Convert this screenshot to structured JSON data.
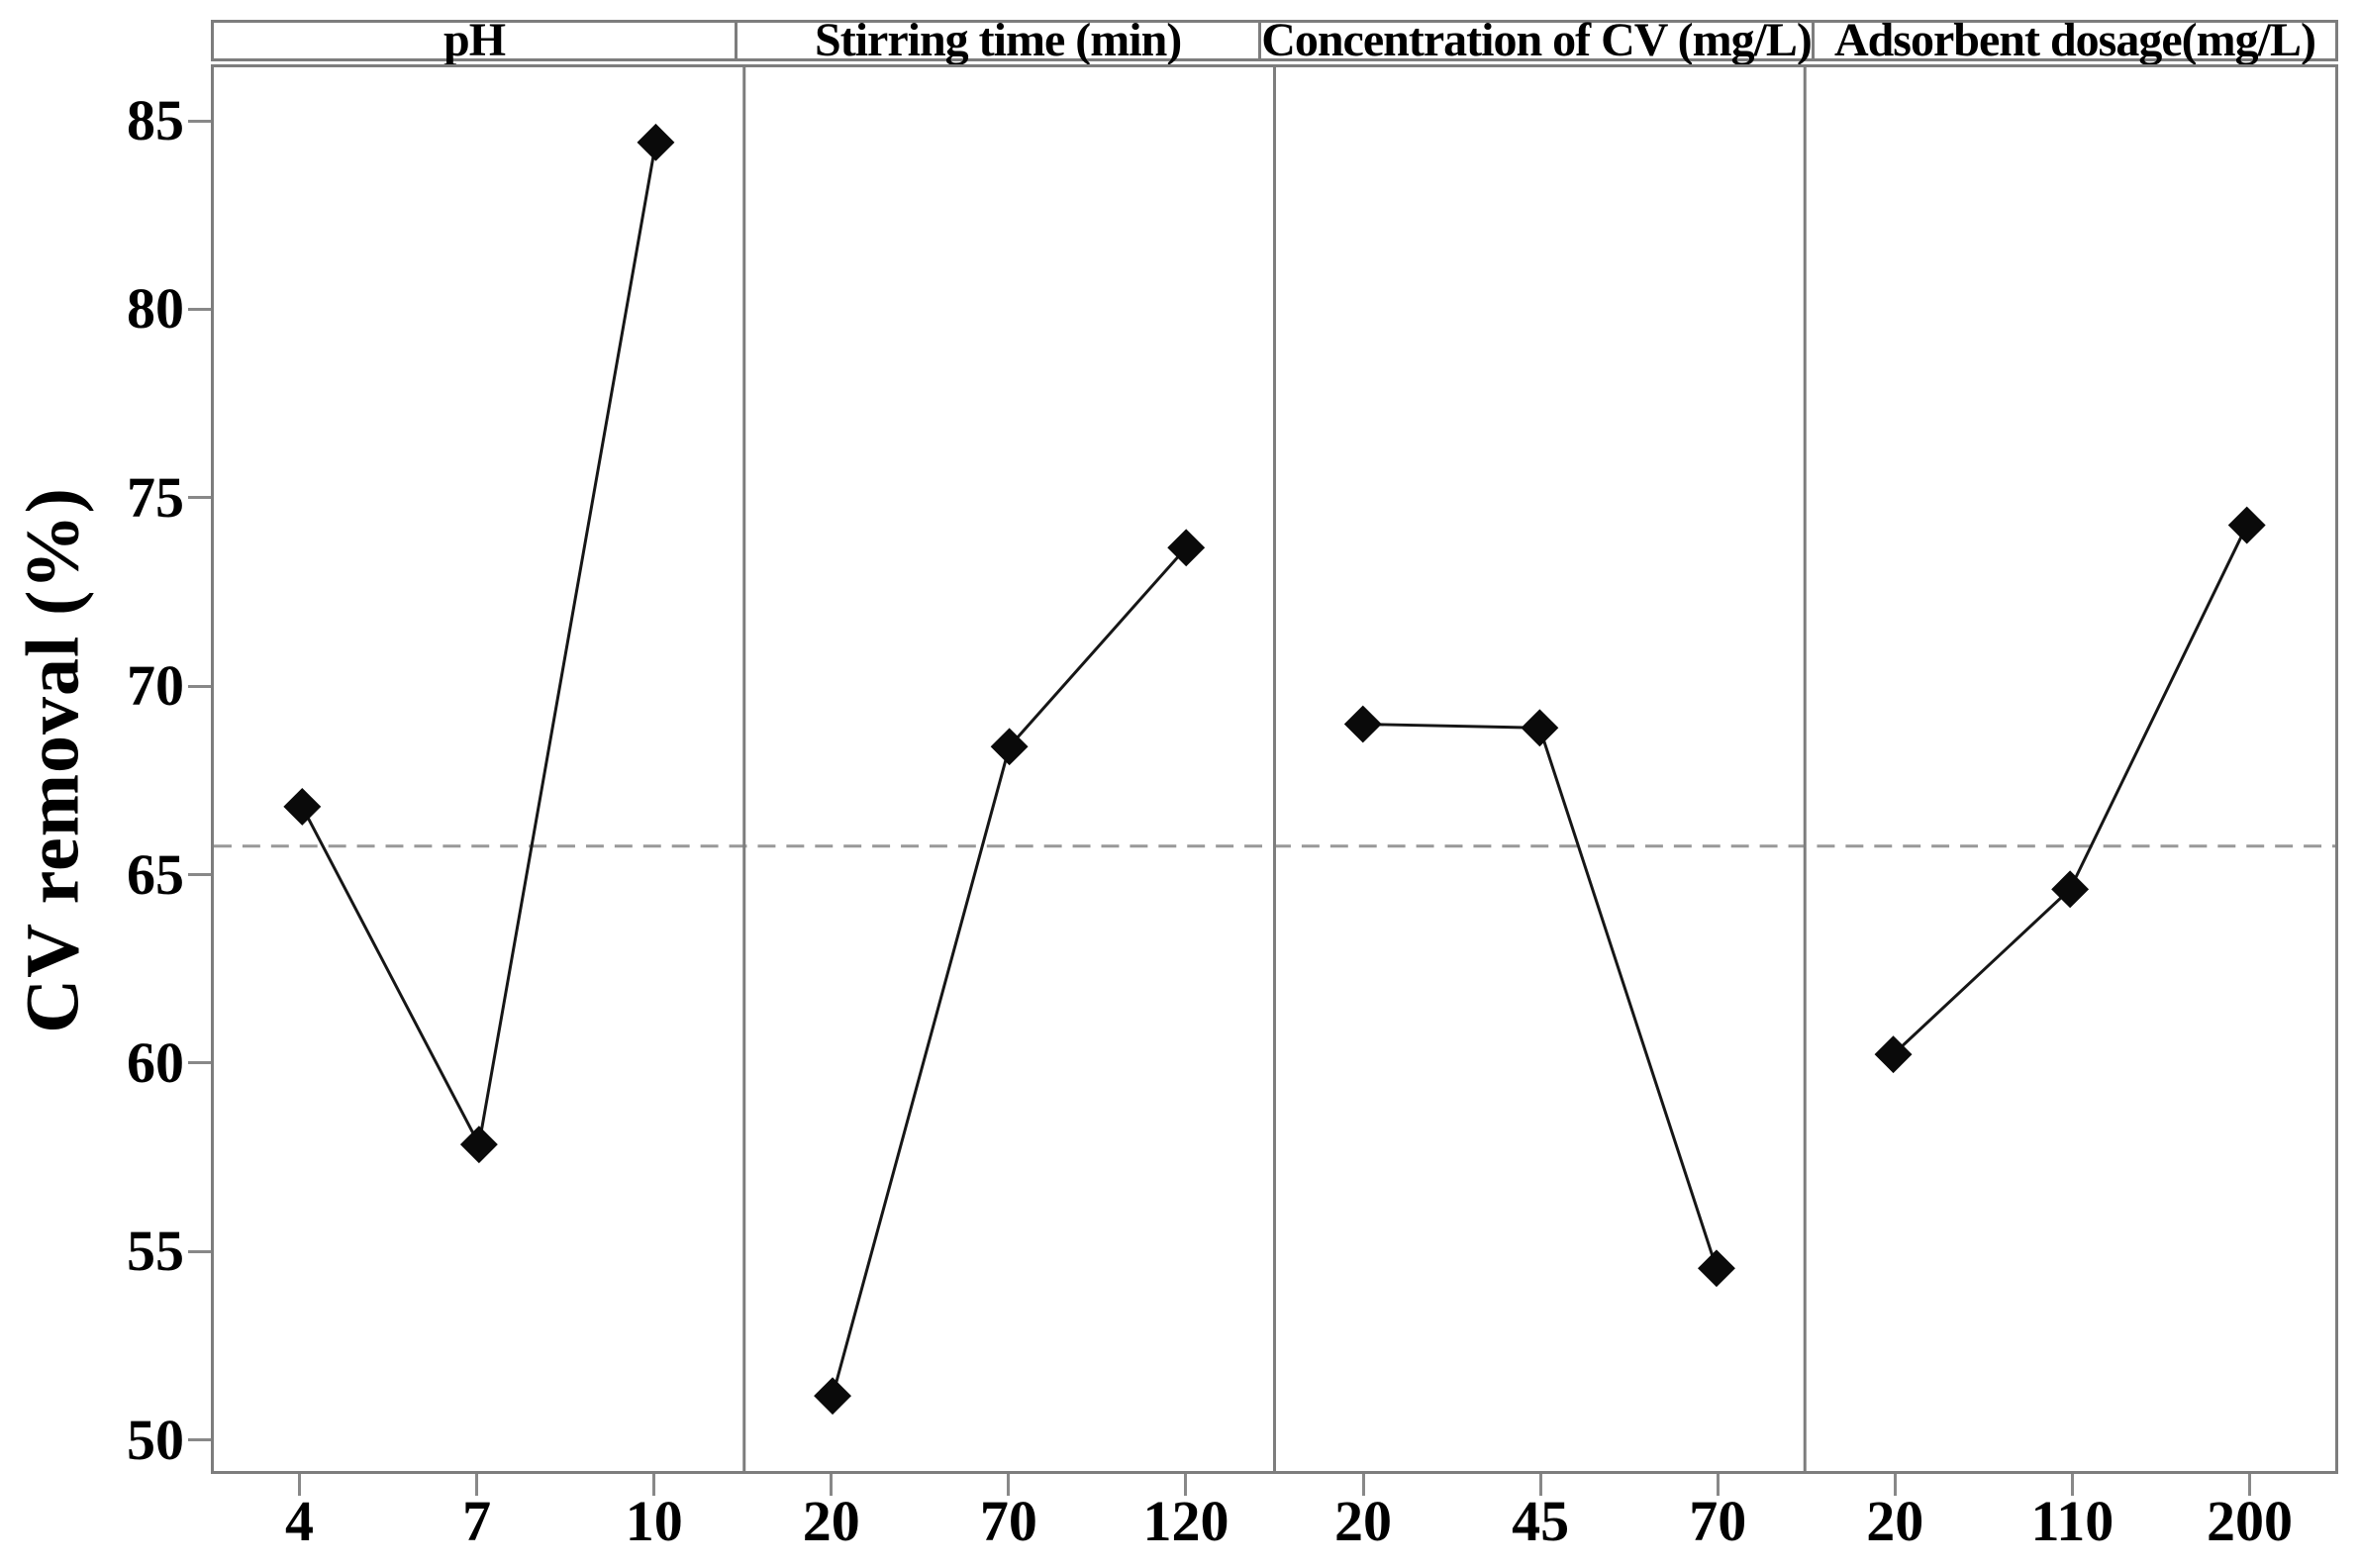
{
  "chart_data": {
    "type": "line",
    "subtype": "main-effects-plot",
    "title": "",
    "ylabel": "CV removal (%)",
    "xlabel": "",
    "y_axis": {
      "min": 49.1,
      "max": 86.5,
      "ticks": [
        85,
        80,
        75,
        70,
        65,
        60,
        55,
        50
      ]
    },
    "mean_line": 65.75,
    "grid": false,
    "legend_position": "none",
    "marker": "diamond",
    "mean_line_style": "dashed",
    "panels": [
      {
        "name": "pH",
        "categories": [
          "4",
          "7",
          "10"
        ],
        "values": [
          66.8,
          57.8,
          84.5
        ]
      },
      {
        "name": "Stirring time (min)",
        "categories": [
          "20",
          "70",
          "120"
        ],
        "values": [
          51.1,
          68.4,
          73.7
        ]
      },
      {
        "name": "Concentration of CV (mg/L)",
        "categories": [
          "20",
          "45",
          "70"
        ],
        "values": [
          69.0,
          68.9,
          54.5
        ]
      },
      {
        "name": "Adsorbent dosage(mg/L)",
        "categories": [
          "20",
          "110",
          "200"
        ],
        "values": [
          60.2,
          64.6,
          74.3
        ]
      }
    ],
    "colors": {
      "marker": "#0a0a0a",
      "line": "#161616",
      "border": "#7d7d7d",
      "tick": "#888888",
      "mean_line": "#999999",
      "text": "#000000"
    }
  }
}
